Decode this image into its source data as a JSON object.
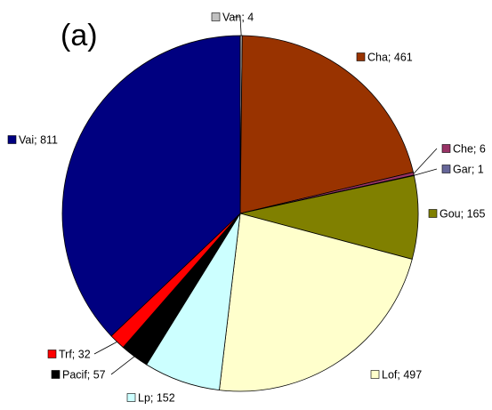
{
  "chart_data": {
    "type": "pie",
    "title": "(a)",
    "categories": [
      "Van",
      "Cha",
      "Che",
      "Gar",
      "Gou",
      "Lof",
      "Lp",
      "Pacif",
      "Trf",
      "Vai"
    ],
    "values": [
      4,
      461,
      6,
      1,
      165,
      497,
      152,
      57,
      32,
      811
    ],
    "value_labels": [
      "Van; 4",
      "Cha; 461",
      "Che; 6",
      "Gar; 1",
      "Gou; 165",
      "Lof; 497",
      "Lp; 152",
      "Pacif; 57",
      "Trf; 32",
      "Vai; 811"
    ],
    "colors": [
      "#c0c0c0",
      "#993300",
      "#993366",
      "#666699",
      "#808000",
      "#ffffcc",
      "#ccffff",
      "#000000",
      "#ff0000",
      "#000080"
    ]
  }
}
